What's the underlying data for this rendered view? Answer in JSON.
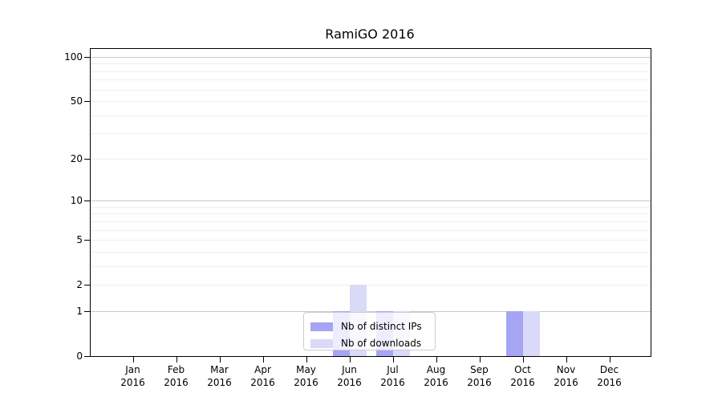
{
  "chart_data": {
    "type": "bar",
    "title": "RamiGO 2016",
    "x_categories": [
      {
        "month": "Jan",
        "year": "2016"
      },
      {
        "month": "Feb",
        "year": "2016"
      },
      {
        "month": "Mar",
        "year": "2016"
      },
      {
        "month": "Apr",
        "year": "2016"
      },
      {
        "month": "May",
        "year": "2016"
      },
      {
        "month": "Jun",
        "year": "2016"
      },
      {
        "month": "Jul",
        "year": "2016"
      },
      {
        "month": "Aug",
        "year": "2016"
      },
      {
        "month": "Sep",
        "year": "2016"
      },
      {
        "month": "Oct",
        "year": "2016"
      },
      {
        "month": "Nov",
        "year": "2016"
      },
      {
        "month": "Dec",
        "year": "2016"
      }
    ],
    "series": [
      {
        "name": "Nb of distinct IPs",
        "color": "#a5a5f3",
        "values": [
          0,
          0,
          0,
          0,
          0,
          1,
          1,
          0,
          0,
          1,
          0,
          0
        ]
      },
      {
        "name": "Nb of downloads",
        "color": "#d9d9f8",
        "values": [
          0,
          0,
          0,
          0,
          0,
          2,
          1,
          0,
          0,
          1,
          0,
          0
        ]
      }
    ],
    "y_axis": {
      "scale": "log1p",
      "ylim": [
        0,
        113
      ],
      "tick_labels": [
        0,
        1,
        2,
        5,
        10,
        20,
        50,
        100
      ],
      "major_gridlines": [
        1,
        10,
        100
      ],
      "minor_gridlines": [
        2,
        3,
        4,
        5,
        6,
        7,
        8,
        9,
        20,
        30,
        40,
        50,
        60,
        70,
        80,
        90
      ]
    },
    "legend": {
      "position": "lower center",
      "entries": [
        "Nb of distinct IPs",
        "Nb of downloads"
      ]
    },
    "grid": true
  },
  "colors": {
    "background": "#ffffff",
    "axis": "#000000",
    "major_grid": "#c9c9c9",
    "minor_grid": "#efefef",
    "text": "#000000",
    "legend_border": "#cccccc"
  }
}
